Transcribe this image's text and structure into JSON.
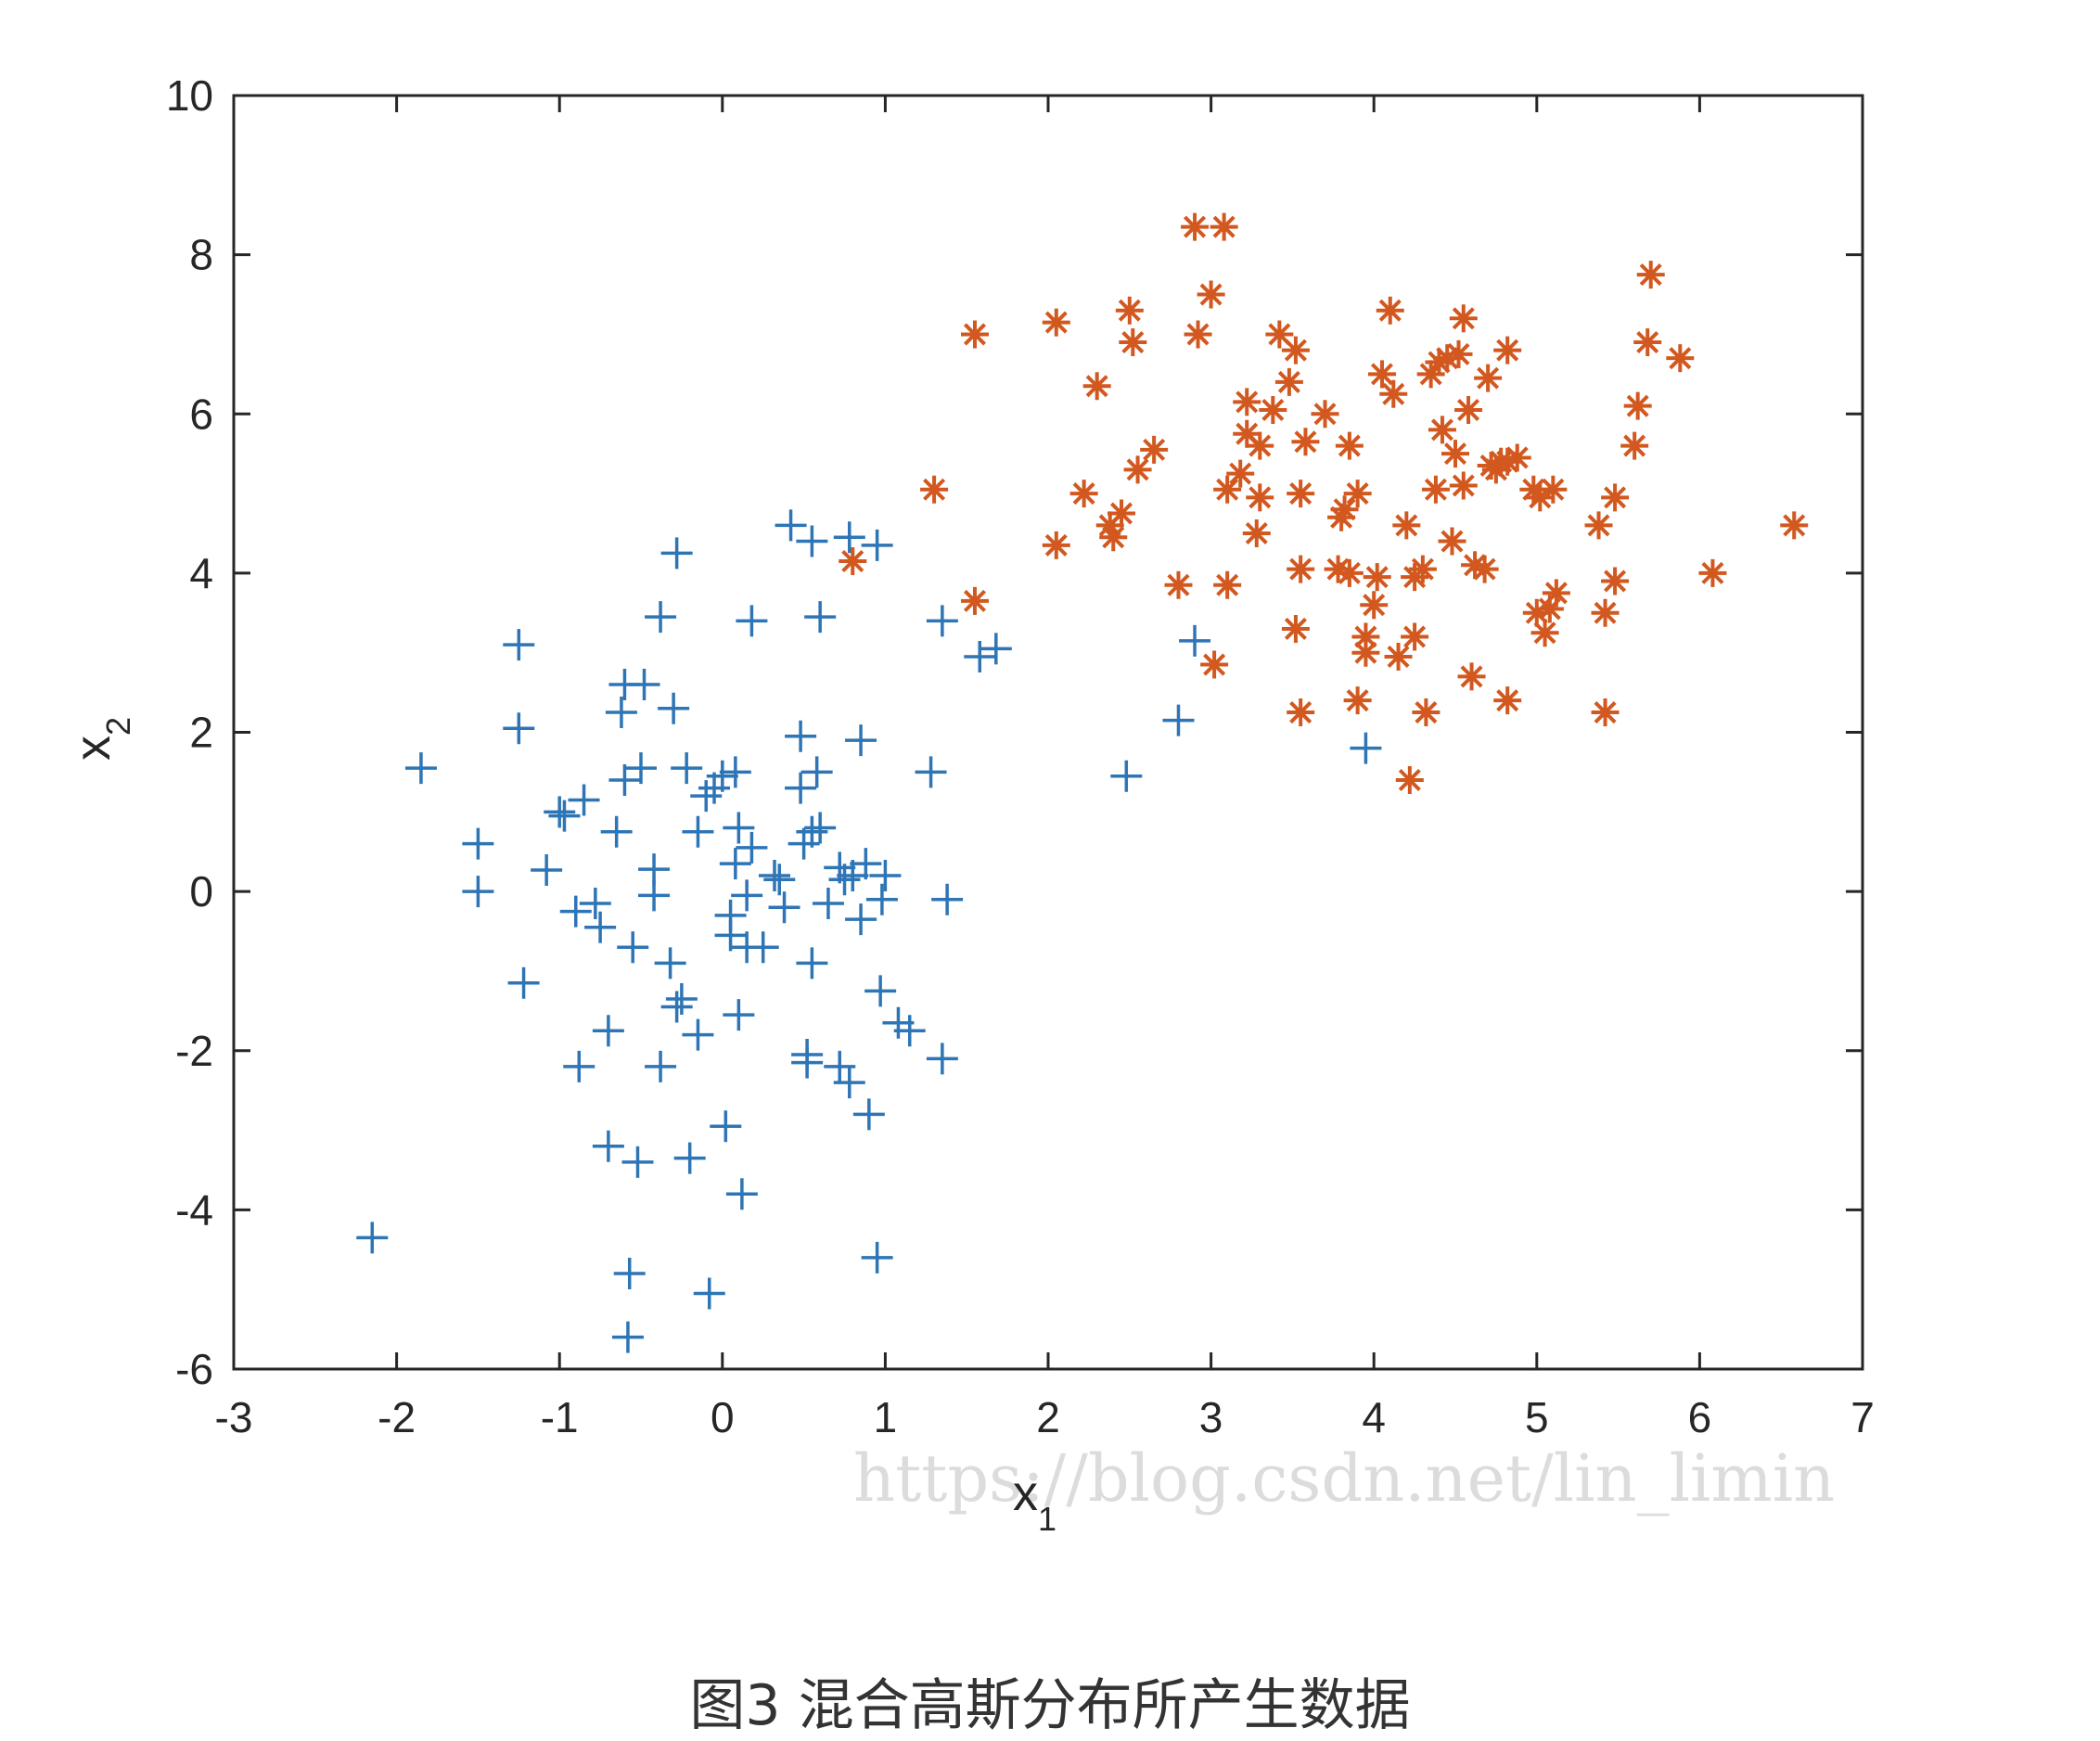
{
  "caption": "图3 混合高斯分布所产生数据",
  "watermark": "https://blog.csdn.net/lin_limin",
  "colors": {
    "series1": "#2e75b6",
    "series2": "#d2581f",
    "axis": "#262626",
    "background": "#ffffff"
  },
  "chart_data": {
    "type": "scatter",
    "title": "",
    "xlabel": "x",
    "xlabel_sub": "1",
    "ylabel": "x",
    "ylabel_sub": "2",
    "xlim": [
      -3,
      7
    ],
    "ylim": [
      -6,
      10
    ],
    "xticks": [
      -3,
      -2,
      -1,
      0,
      1,
      2,
      3,
      4,
      5,
      6,
      7
    ],
    "yticks": [
      -6,
      -4,
      -2,
      0,
      2,
      4,
      6,
      8,
      10
    ],
    "grid": false,
    "legend": "none",
    "series": [
      {
        "marker": "plus",
        "color": "#2e75b6",
        "points": [
          [
            -2.15,
            -4.35
          ],
          [
            -1.85,
            1.55
          ],
          [
            -1.5,
            0.6
          ],
          [
            -1.5,
            0.0
          ],
          [
            -1.25,
            3.1
          ],
          [
            -1.25,
            2.05
          ],
          [
            -1.22,
            -1.15
          ],
          [
            -1.08,
            0.27
          ],
          [
            -1.0,
            1.0
          ],
          [
            -0.97,
            0.95
          ],
          [
            -0.9,
            -0.25
          ],
          [
            -0.85,
            1.15
          ],
          [
            -0.88,
            -2.2
          ],
          [
            -0.78,
            -0.15
          ],
          [
            -0.75,
            -0.45
          ],
          [
            -0.7,
            -1.75
          ],
          [
            -0.7,
            -3.2
          ],
          [
            -0.65,
            0.75
          ],
          [
            -0.62,
            2.25
          ],
          [
            -0.6,
            2.6
          ],
          [
            -0.6,
            1.4
          ],
          [
            -0.58,
            -5.6
          ],
          [
            -0.57,
            -4.8
          ],
          [
            -0.55,
            -0.7
          ],
          [
            -0.52,
            -3.4
          ],
          [
            -0.5,
            1.55
          ],
          [
            -0.48,
            2.6
          ],
          [
            -0.42,
            0.28
          ],
          [
            -0.42,
            -0.05
          ],
          [
            -0.38,
            3.45
          ],
          [
            -0.38,
            -2.2
          ],
          [
            -0.32,
            -0.9
          ],
          [
            -0.3,
            2.3
          ],
          [
            -0.28,
            4.25
          ],
          [
            -0.28,
            -1.45
          ],
          [
            -0.25,
            -1.35
          ],
          [
            -0.22,
            1.55
          ],
          [
            -0.2,
            -3.35
          ],
          [
            -0.15,
            0.75
          ],
          [
            -0.15,
            -1.8
          ],
          [
            -0.1,
            1.2
          ],
          [
            -0.08,
            -5.05
          ],
          [
            -0.05,
            1.3
          ],
          [
            0.0,
            1.45
          ],
          [
            0.02,
            -2.95
          ],
          [
            0.05,
            -0.3
          ],
          [
            0.05,
            -0.55
          ],
          [
            0.08,
            1.5
          ],
          [
            0.08,
            0.35
          ],
          [
            0.1,
            0.8
          ],
          [
            0.1,
            -1.55
          ],
          [
            0.12,
            -3.8
          ],
          [
            0.15,
            -0.05
          ],
          [
            0.15,
            -0.7
          ],
          [
            0.18,
            0.55
          ],
          [
            0.18,
            3.4
          ],
          [
            0.25,
            -0.7
          ],
          [
            0.32,
            0.2
          ],
          [
            0.35,
            0.15
          ],
          [
            0.38,
            -0.2
          ],
          [
            0.42,
            4.6
          ],
          [
            0.48,
            1.95
          ],
          [
            0.48,
            1.3
          ],
          [
            0.5,
            0.6
          ],
          [
            0.52,
            -2.05
          ],
          [
            0.52,
            -2.15
          ],
          [
            0.55,
            4.4
          ],
          [
            0.55,
            -0.9
          ],
          [
            0.55,
            0.75
          ],
          [
            0.58,
            1.5
          ],
          [
            0.6,
            0.8
          ],
          [
            0.6,
            3.45
          ],
          [
            0.65,
            -0.15
          ],
          [
            0.72,
            -2.2
          ],
          [
            0.72,
            0.3
          ],
          [
            0.75,
            0.15
          ],
          [
            0.78,
            4.45
          ],
          [
            0.78,
            -2.4
          ],
          [
            0.8,
            0.2
          ],
          [
            0.85,
            1.9
          ],
          [
            0.85,
            -0.35
          ],
          [
            0.88,
            0.35
          ],
          [
            0.9,
            -2.8
          ],
          [
            0.95,
            4.35
          ],
          [
            0.95,
            -4.6
          ],
          [
            0.97,
            -1.25
          ],
          [
            0.98,
            -0.1
          ],
          [
            1.0,
            0.2
          ],
          [
            1.08,
            -1.65
          ],
          [
            1.15,
            -1.75
          ],
          [
            1.28,
            1.5
          ],
          [
            1.35,
            3.4
          ],
          [
            1.35,
            -2.1
          ],
          [
            1.38,
            -0.1
          ],
          [
            1.58,
            2.95
          ],
          [
            1.68,
            3.05
          ],
          [
            2.48,
            1.45
          ],
          [
            2.8,
            2.15
          ],
          [
            2.9,
            3.15
          ],
          [
            3.95,
            1.8
          ]
        ]
      },
      {
        "marker": "asterisk",
        "color": "#d2581f",
        "points": [
          [
            0.8,
            4.15
          ],
          [
            1.3,
            5.05
          ],
          [
            1.55,
            3.65
          ],
          [
            1.55,
            7.0
          ],
          [
            2.05,
            4.35
          ],
          [
            2.05,
            7.15
          ],
          [
            2.22,
            5.0
          ],
          [
            2.3,
            6.35
          ],
          [
            2.38,
            4.6
          ],
          [
            2.4,
            4.45
          ],
          [
            2.45,
            4.75
          ],
          [
            2.5,
            7.3
          ],
          [
            2.52,
            6.9
          ],
          [
            2.55,
            5.3
          ],
          [
            2.65,
            5.55
          ],
          [
            2.8,
            3.85
          ],
          [
            2.9,
            8.35
          ],
          [
            2.92,
            7.0
          ],
          [
            3.0,
            7.5
          ],
          [
            3.02,
            2.85
          ],
          [
            3.08,
            8.35
          ],
          [
            3.1,
            3.85
          ],
          [
            3.1,
            5.05
          ],
          [
            3.18,
            5.25
          ],
          [
            3.22,
            6.15
          ],
          [
            3.22,
            5.75
          ],
          [
            3.28,
            4.5
          ],
          [
            3.3,
            5.6
          ],
          [
            3.3,
            4.95
          ],
          [
            3.38,
            6.05
          ],
          [
            3.42,
            7.0
          ],
          [
            3.48,
            6.4
          ],
          [
            3.52,
            6.8
          ],
          [
            3.52,
            3.3
          ],
          [
            3.55,
            2.25
          ],
          [
            3.55,
            4.05
          ],
          [
            3.55,
            5.0
          ],
          [
            3.58,
            5.65
          ],
          [
            3.7,
            6.0
          ],
          [
            3.78,
            4.05
          ],
          [
            3.8,
            4.7
          ],
          [
            3.82,
            4.8
          ],
          [
            3.85,
            4.0
          ],
          [
            3.85,
            5.6
          ],
          [
            3.9,
            5.0
          ],
          [
            3.9,
            2.4
          ],
          [
            3.95,
            3.2
          ],
          [
            3.95,
            3.0
          ],
          [
            4.0,
            3.6
          ],
          [
            4.02,
            3.95
          ],
          [
            4.05,
            6.5
          ],
          [
            4.1,
            7.3
          ],
          [
            4.12,
            6.25
          ],
          [
            4.15,
            2.95
          ],
          [
            4.2,
            4.6
          ],
          [
            4.22,
            1.4
          ],
          [
            4.25,
            3.95
          ],
          [
            4.25,
            3.2
          ],
          [
            4.3,
            4.05
          ],
          [
            4.32,
            2.25
          ],
          [
            4.35,
            6.5
          ],
          [
            4.38,
            5.05
          ],
          [
            4.4,
            6.65
          ],
          [
            4.42,
            5.8
          ],
          [
            4.45,
            6.7
          ],
          [
            4.48,
            4.4
          ],
          [
            4.5,
            5.5
          ],
          [
            4.52,
            6.75
          ],
          [
            4.55,
            5.1
          ],
          [
            4.55,
            7.2
          ],
          [
            4.58,
            6.05
          ],
          [
            4.6,
            2.7
          ],
          [
            4.62,
            4.1
          ],
          [
            4.68,
            4.05
          ],
          [
            4.7,
            6.45
          ],
          [
            4.72,
            5.35
          ],
          [
            4.75,
            5.3
          ],
          [
            4.78,
            5.4
          ],
          [
            4.82,
            5.4
          ],
          [
            4.82,
            6.8
          ],
          [
            4.82,
            2.4
          ],
          [
            4.88,
            5.45
          ],
          [
            4.98,
            5.05
          ],
          [
            5.0,
            3.5
          ],
          [
            5.02,
            4.95
          ],
          [
            5.05,
            3.25
          ],
          [
            5.08,
            3.55
          ],
          [
            5.1,
            5.05
          ],
          [
            5.12,
            3.75
          ],
          [
            5.38,
            4.6
          ],
          [
            5.42,
            3.5
          ],
          [
            5.42,
            2.25
          ],
          [
            5.48,
            4.95
          ],
          [
            5.48,
            3.9
          ],
          [
            5.6,
            5.6
          ],
          [
            5.62,
            6.1
          ],
          [
            5.68,
            6.9
          ],
          [
            5.7,
            7.75
          ],
          [
            5.88,
            6.7
          ],
          [
            6.08,
            4.0
          ],
          [
            6.58,
            4.6
          ]
        ]
      }
    ]
  }
}
